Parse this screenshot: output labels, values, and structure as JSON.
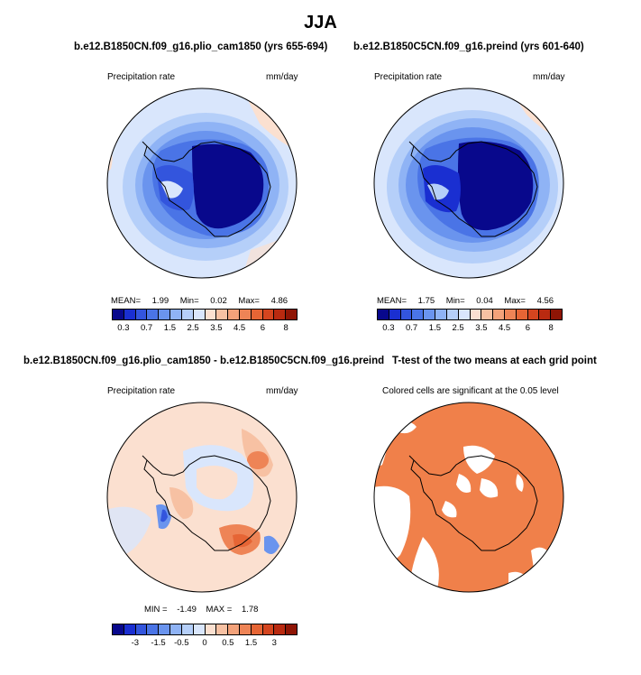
{
  "figure": {
    "title": "JJA"
  },
  "panels": [
    {
      "title": "b.e12.B1850CN.f09_g16.plio_cam1850 (yrs 655-694)",
      "left_label": "Precipitation rate",
      "right_label": "mm/day",
      "stats": {
        "mean_label": "MEAN=",
        "mean": "1.99",
        "min_label": "Min=",
        "min": "0.02",
        "max_label": "Max=",
        "max": "4.86"
      },
      "colorbar_ticks": [
        "0.3",
        "0.7",
        "1.5",
        "2.5",
        "3.5",
        "4.5",
        "6",
        "8"
      ]
    },
    {
      "title": "b.e12.B1850C5CN.f09_g16.preind (yrs 601-640)",
      "left_label": "Precipitation rate",
      "right_label": "mm/day",
      "stats": {
        "mean_label": "MEAN=",
        "mean": "1.75",
        "min_label": "Min=",
        "min": "0.04",
        "max_label": "Max=",
        "max": "4.56"
      },
      "colorbar_ticks": [
        "0.3",
        "0.7",
        "1.5",
        "2.5",
        "3.5",
        "4.5",
        "6",
        "8"
      ]
    },
    {
      "title": "b.e12.B1850CN.f09_g16.plio_cam1850 - b.e12.B1850C5CN.f09_g16.preind",
      "left_label": "Precipitation rate",
      "right_label": "mm/day",
      "stats": {
        "min_label": "MIN =",
        "min": "-1.49",
        "max_label": "MAX =",
        "max": "1.78"
      },
      "colorbar_ticks": [
        "-3",
        "-1.5",
        "-0.5",
        "0",
        "0.5",
        "1.5",
        "3"
      ]
    },
    {
      "title": "T-test of the two means at each grid point",
      "subtitle": "Colored cells are significant at the 0.05 level"
    }
  ],
  "colors": {
    "precip_scale": [
      "#08088c",
      "#1a2fd1",
      "#3355dd",
      "#4a74e6",
      "#6a94ee",
      "#8fb3f5",
      "#b5cff9",
      "#d9e6fc",
      "#fbe0d0",
      "#f7c1a3",
      "#f3a27a",
      "#ee8456",
      "#e66535",
      "#d4451f",
      "#b92a10",
      "#8f1505"
    ],
    "diff_scale": [
      "#08088c",
      "#1a2fd1",
      "#3355dd",
      "#4a74e6",
      "#6a94ee",
      "#8fb3f5",
      "#b5cff9",
      "#d9e6fc",
      "#fbe0d0",
      "#f7c1a3",
      "#f3a27a",
      "#ee8456",
      "#e66535",
      "#d4451f",
      "#b92a10",
      "#8f1505"
    ],
    "significance": "#f0804a",
    "ocean_light": "#d9e6fc",
    "land_dark": "#08088c"
  }
}
